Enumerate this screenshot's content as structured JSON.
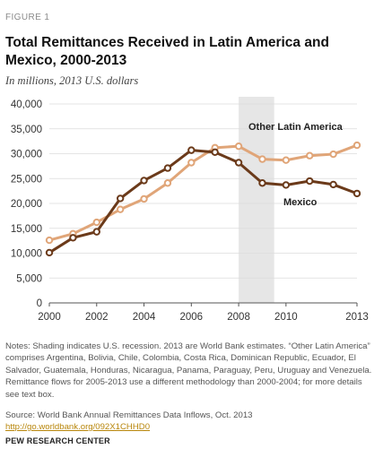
{
  "figure_label": "FIGURE 1",
  "title": "Total Remittances Received in Latin America and Mexico, 2000-2013",
  "subtitle": "In millions, 2013 U.S. dollars",
  "notes": "Notes: Shading indicates U.S. recession. 2013 are World Bank estimates. “Other Latin America” comprises Argentina, Bolivia, Chile, Colombia, Costa Rica, Dominican Republic, Ecuador, El Salvador, Guatemala, Honduras, Nicaragua, Panama, Paraguay, Peru, Uruguay and Venezuela. Remittance flows for 2005-2013 use a different methodology than 2000-2004; for more details see text box.",
  "source": "Source: World Bank Annual Remittances Data Inflows, Oct. 2013",
  "source_link": "http://go.worldbank.org/092X1CHHD0",
  "organization": "PEW RESEARCH CENTER",
  "chart_data": {
    "type": "line",
    "x": [
      2000,
      2001,
      2002,
      2003,
      2004,
      2005,
      2006,
      2007,
      2008,
      2009,
      2010,
      2011,
      2012,
      2013
    ],
    "xticks": [
      2000,
      2002,
      2004,
      2006,
      2008,
      2010,
      2013
    ],
    "xlim": [
      2000,
      2013
    ],
    "ylim": [
      0,
      40000
    ],
    "yticks": [
      0,
      5000,
      10000,
      15000,
      20000,
      25000,
      30000,
      35000,
      40000
    ],
    "ytick_labels": [
      "0",
      "5,000",
      "10,000",
      "15,000",
      "20,000",
      "25,000",
      "30,000",
      "35,000",
      "40,000"
    ],
    "shading": {
      "label": "U.S. recession",
      "from": 2008,
      "to": 2009.5,
      "color": "#e6e6e6"
    },
    "grid": true,
    "series": [
      {
        "name": "Other Latin America",
        "color": "#e0a578",
        "values": [
          12600,
          13900,
          16200,
          18800,
          20900,
          24100,
          28200,
          31200,
          31500,
          28900,
          28700,
          29600,
          29900,
          31700
        ]
      },
      {
        "name": "Mexico",
        "color": "#6b3a1a",
        "values": [
          10100,
          13100,
          14300,
          21000,
          24600,
          27100,
          30700,
          30300,
          28200,
          24100,
          23700,
          24500,
          23800,
          22000
        ]
      }
    ]
  }
}
